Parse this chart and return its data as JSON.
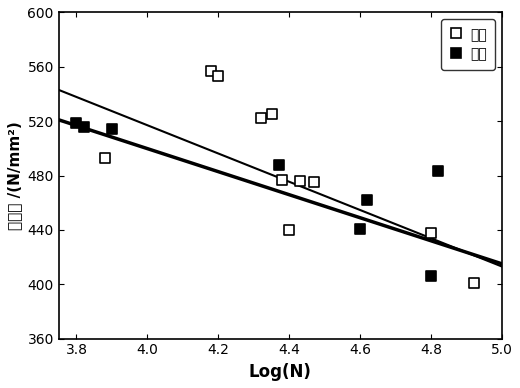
{
  "title": "",
  "xlabel": "Log(N)",
  "ylabel": "应力幅 /(N/mm²)",
  "xlim": [
    3.75,
    5.0
  ],
  "ylim": [
    360,
    600
  ],
  "xticks": [
    3.8,
    4.0,
    4.2,
    4.4,
    4.6,
    4.8,
    5.0
  ],
  "yticks": [
    360,
    400,
    440,
    480,
    520,
    560,
    600
  ],
  "sample_x": [
    3.88,
    4.18,
    4.2,
    4.32,
    4.35,
    4.38,
    4.4,
    4.43,
    4.47,
    4.8,
    4.92
  ],
  "sample_y": [
    493,
    557,
    553,
    522,
    525,
    477,
    440,
    476,
    475,
    438,
    401
  ],
  "domestic_x": [
    3.8,
    3.82,
    3.9,
    4.37,
    4.6,
    4.62,
    4.8,
    4.82
  ],
  "domestic_y": [
    519,
    516,
    514,
    488,
    441,
    462,
    406,
    483
  ],
  "line1_x": [
    3.75,
    5.0
  ],
  "line1_y": [
    543,
    413
  ],
  "line2_x": [
    3.75,
    5.0
  ],
  "line2_y": [
    521,
    415
  ],
  "legend_labels": [
    "样机",
    "国产"
  ],
  "marker_size": 7,
  "line_color": "black",
  "line1_lw": 1.5,
  "line2_lw": 2.5,
  "background_color": "#ffffff"
}
